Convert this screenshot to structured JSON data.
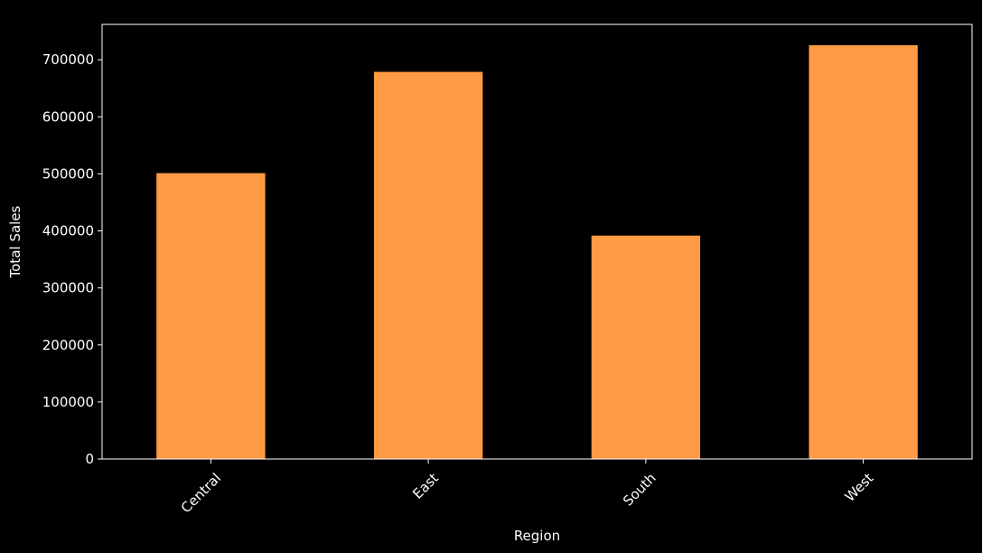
{
  "chart_data": {
    "type": "bar",
    "title": "",
    "xlabel": "Region",
    "ylabel": "Total Sales",
    "categories": [
      "Central",
      "East",
      "South",
      "West"
    ],
    "values": [
      501240,
      678781,
      391722,
      725458
    ],
    "ylim": [
      0,
      762000
    ],
    "yticks": [
      0,
      100000,
      200000,
      300000,
      400000,
      500000,
      600000,
      700000
    ],
    "ytick_labels": [
      "0",
      "100000",
      "200000",
      "300000",
      "400000",
      "500000",
      "600000",
      "700000"
    ],
    "grid": false,
    "legend": "none",
    "colors": {
      "background": "#000000",
      "bar": "#ff9a45",
      "axis": "#ffffff",
      "text": "#ffffff"
    }
  }
}
